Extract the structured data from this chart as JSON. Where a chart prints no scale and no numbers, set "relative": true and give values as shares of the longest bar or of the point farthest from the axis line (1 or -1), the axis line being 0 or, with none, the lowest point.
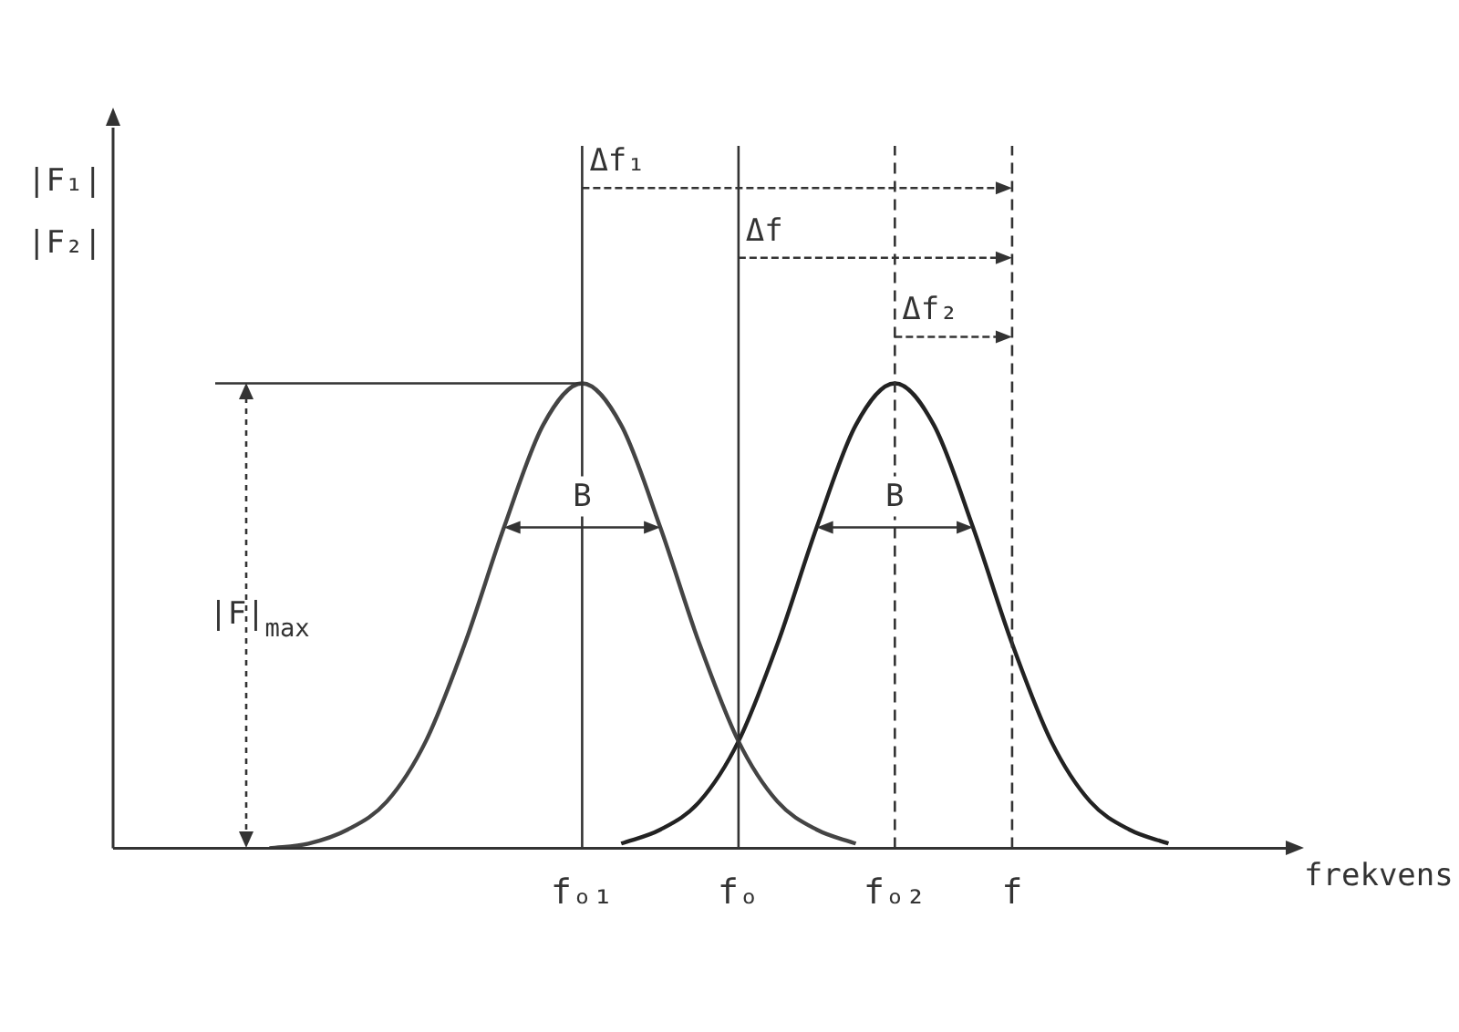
{
  "chart_data": {
    "type": "line",
    "relative": true,
    "categories": [
      null,
      null,
      null,
      null,
      null,
      null,
      null,
      null,
      null,
      null,
      null,
      null,
      "fₒ₁",
      null,
      null,
      null,
      "fₒ",
      null,
      null,
      null,
      "fₒ₂",
      null,
      null,
      "f",
      null,
      null,
      null,
      null,
      null,
      null,
      null
    ],
    "series": [
      {
        "color": "#444444",
        "values": [
          null,
          null,
          null,
          null,
          0,
          0.01,
          0.04,
          0.1,
          0.23,
          0.44,
          0.69,
          0.91,
          1,
          0.91,
          0.69,
          0.44,
          0.23,
          0.1,
          0.04,
          0.01,
          null,
          null,
          null,
          null,
          null,
          null,
          null,
          null,
          null,
          null,
          null
        ]
      },
      {
        "color": "#222222",
        "values": [
          null,
          null,
          null,
          null,
          null,
          null,
          null,
          null,
          null,
          null,
          null,
          null,
          null,
          0.01,
          0.04,
          0.1,
          0.23,
          0.44,
          0.69,
          0.91,
          1,
          0.91,
          0.69,
          0.44,
          0.23,
          0.1,
          0.04,
          0.01,
          null,
          null,
          null
        ]
      }
    ],
    "xlabel": "frekvens",
    "ylabel": "|F₁|\n|F₂|",
    "ref_lines": [
      {
        "axis": "x",
        "value": "fₒ₁",
        "line_style": "solid"
      },
      {
        "axis": "x",
        "value": "fₒ",
        "line_style": "solid"
      },
      {
        "axis": "x",
        "value": "fₒ₂",
        "line_style": "dashed"
      },
      {
        "axis": "x",
        "value": "f",
        "line_style": "dashed"
      },
      {
        "axis": "y",
        "value": 1,
        "label": "|F|$_{max}$",
        "line_style": "solid"
      }
    ],
    "annotations": [
      {
        "text": "Δf₁",
        "x": "fₒ₁",
        "y": 1.42
      },
      {
        "text": "Δf",
        "x": "fₒ",
        "y": 1.27
      },
      {
        "text": "Δf₂",
        "x": "fₒ₂",
        "y": 1.1
      },
      {
        "text": "B",
        "x": "fₒ₁",
        "y": 0.69
      },
      {
        "text": "B",
        "x": "fₒ₂",
        "y": 0.69
      }
    ],
    "marker": "none",
    "line_style": "solid",
    "grid": false,
    "legend": false,
    "tick_labels": "x"
  }
}
